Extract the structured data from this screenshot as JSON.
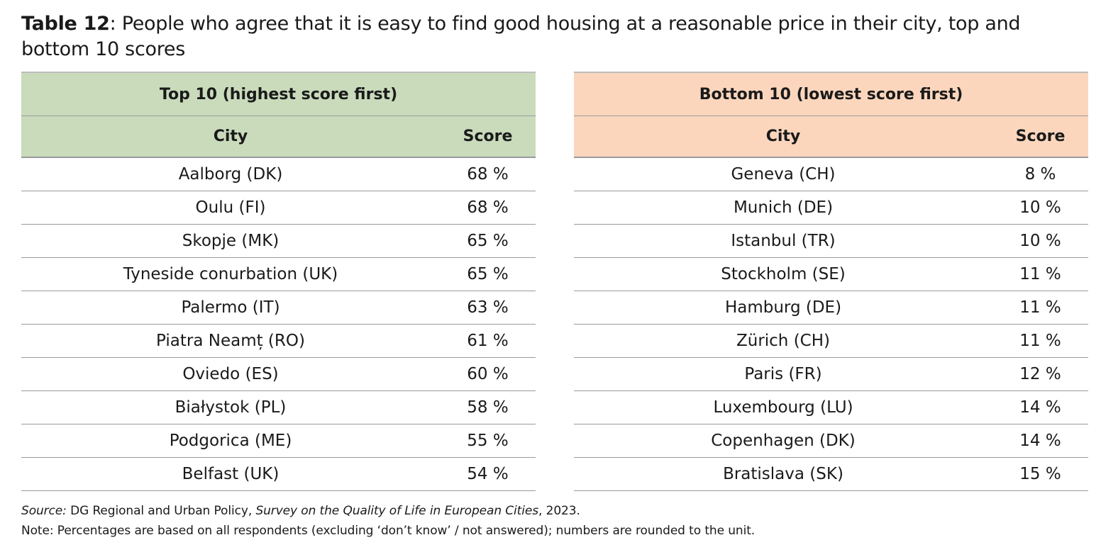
{
  "caption": {
    "label": "Table 12",
    "text": ": People who agree that it is easy to find good housing at a reasonable price in their city, top and bottom 10 scores"
  },
  "top": {
    "title": "Top 10 (highest score first)",
    "col_city": "City",
    "col_score": "Score",
    "header_color": "#c9dbbb",
    "rows": [
      {
        "city": "Aalborg (DK)",
        "score": "68 %"
      },
      {
        "city": "Oulu (FI)",
        "score": "68 %"
      },
      {
        "city": "Skopje (MK)",
        "score": "65 %"
      },
      {
        "city": "Tyneside conurbation (UK)",
        "score": "65 %"
      },
      {
        "city": "Palermo (IT)",
        "score": "63 %"
      },
      {
        "city": "Piatra Neamț (RO)",
        "score": "61 %"
      },
      {
        "city": "Oviedo (ES)",
        "score": "60 %"
      },
      {
        "city": "Białystok (PL)",
        "score": "58 %"
      },
      {
        "city": "Podgorica (ME)",
        "score": "55 %"
      },
      {
        "city": "Belfast (UK)",
        "score": "54 %"
      }
    ]
  },
  "bottom": {
    "title": "Bottom 10 (lowest score first)",
    "col_city": "City",
    "col_score": "Score",
    "header_color": "#fbd6bd",
    "rows": [
      {
        "city": "Geneva (CH)",
        "score": "8 %"
      },
      {
        "city": "Munich (DE)",
        "score": "10 %"
      },
      {
        "city": "Istanbul (TR)",
        "score": "10 %"
      },
      {
        "city": "Stockholm (SE)",
        "score": "11 %"
      },
      {
        "city": "Hamburg (DE)",
        "score": "11 %"
      },
      {
        "city": "Zürich (CH)",
        "score": "11 %"
      },
      {
        "city": "Paris (FR)",
        "score": "12 %"
      },
      {
        "city": "Luxembourg (LU)",
        "score": "14 %"
      },
      {
        "city": "Copenhagen (DK)",
        "score": "14 %"
      },
      {
        "city": "Bratislava (SK)",
        "score": "15 %"
      }
    ]
  },
  "source": {
    "label": "Source:",
    "org": " DG Regional and Urban Policy, ",
    "survey": "Survey on the Quality of Life in European Cities",
    "year": ", 2023.",
    "note": "Note: Percentages are based on all respondents (excluding ‘don’t know’ / not answered); numbers are rounded to the unit."
  }
}
